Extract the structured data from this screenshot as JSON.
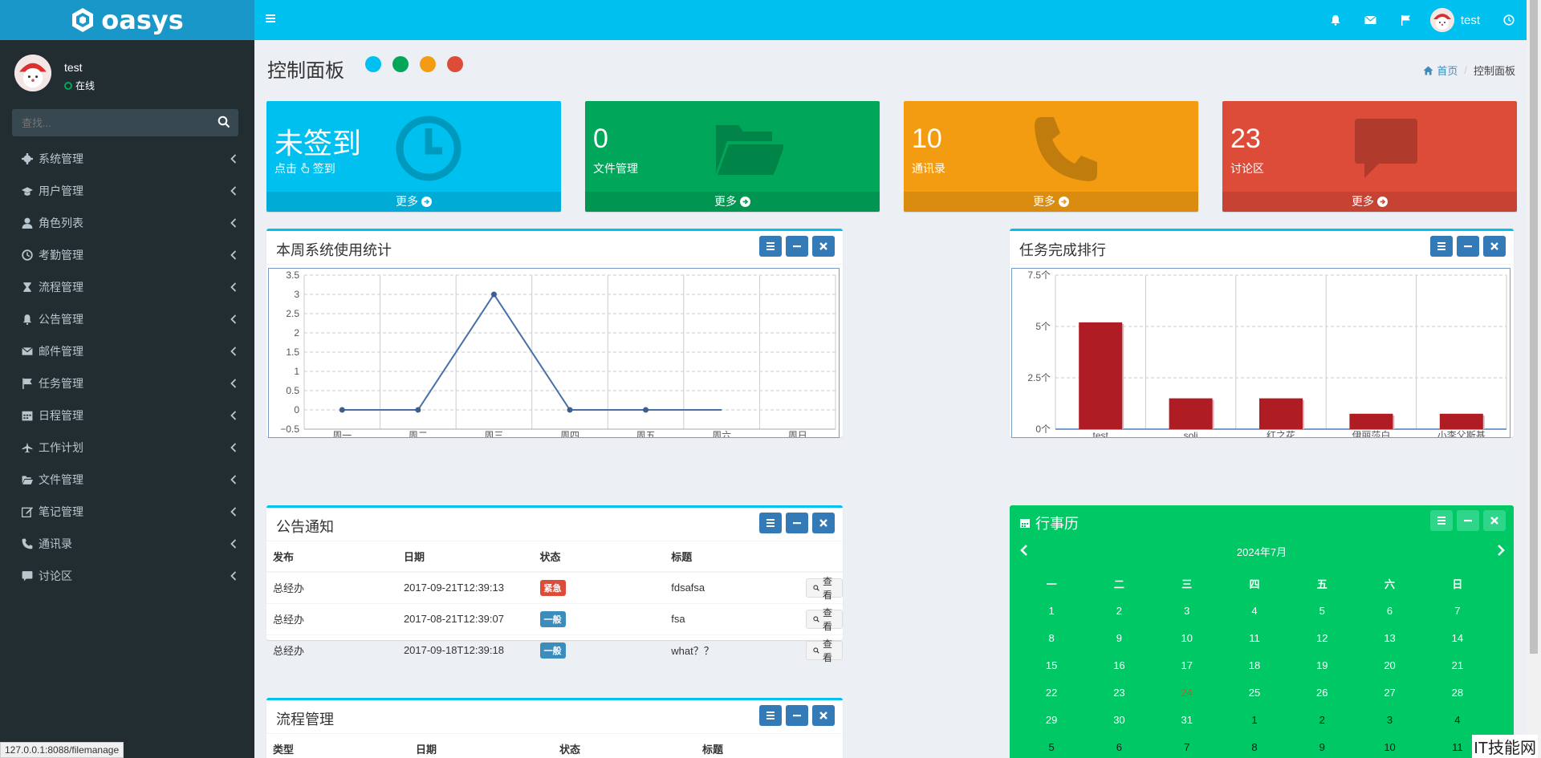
{
  "header": {
    "logo_text": "oasys",
    "user_name": "test"
  },
  "sidebar": {
    "user_name": "test",
    "user_status": "在线",
    "search_placeholder": "查找...",
    "items": [
      {
        "label": "系统管理",
        "icon": "gear-icon"
      },
      {
        "label": "用户管理",
        "icon": "graduation-cap-icon"
      },
      {
        "label": "角色列表",
        "icon": "user-icon"
      },
      {
        "label": "考勤管理",
        "icon": "clock-icon"
      },
      {
        "label": "流程管理",
        "icon": "hourglass-icon"
      },
      {
        "label": "公告管理",
        "icon": "bell-icon"
      },
      {
        "label": "邮件管理",
        "icon": "envelope-icon"
      },
      {
        "label": "任务管理",
        "icon": "flag-icon"
      },
      {
        "label": "日程管理",
        "icon": "calendar-icon"
      },
      {
        "label": "工作计划",
        "icon": "plane-icon"
      },
      {
        "label": "文件管理",
        "icon": "folder-open-icon"
      },
      {
        "label": "笔记管理",
        "icon": "edit-icon"
      },
      {
        "label": "通讯录",
        "icon": "phone-icon"
      },
      {
        "label": "讨论区",
        "icon": "comment-icon"
      }
    ]
  },
  "page": {
    "title": "控制面板",
    "theme_colors": [
      "#00c0ef",
      "#00a65a",
      "#f39c12",
      "#dd4b39"
    ],
    "breadcrumb_home": "首页",
    "breadcrumb_current": "控制面板"
  },
  "small_boxes": [
    {
      "value": "未签到",
      "label_prefix": "点击",
      "label": "签到",
      "footer": "更多",
      "color": "#00c0ef",
      "icon": "clock-icon"
    },
    {
      "value": "0",
      "label": "文件管理",
      "footer": "更多",
      "color": "#00a65a",
      "icon": "folder-open-icon"
    },
    {
      "value": "10",
      "label": "通讯录",
      "footer": "更多",
      "color": "#f39c12",
      "icon": "phone-icon"
    },
    {
      "value": "23",
      "label": "讨论区",
      "footer": "更多",
      "color": "#dd4b39",
      "icon": "comment-icon"
    }
  ],
  "line_box": {
    "title": "本周系统使用统计"
  },
  "bar_box": {
    "title": "任务完成排行"
  },
  "notice_box": {
    "title": "公告通知",
    "columns": [
      "发布",
      "日期",
      "状态",
      "标题",
      ""
    ],
    "rows": [
      {
        "publisher": "总经办",
        "date": "2017-09-21T12:39:13",
        "status": "紧急",
        "status_color": "#dd4b39",
        "title": "fdsafsa",
        "action": "查看"
      },
      {
        "publisher": "总经办",
        "date": "2017-08-21T12:39:07",
        "status": "一般",
        "status_color": "#3c8dbc",
        "title": "fsa",
        "action": "查看"
      },
      {
        "publisher": "总经办",
        "date": "2017-09-18T12:39:18",
        "status": "一般",
        "status_color": "#3c8dbc",
        "title": "what？？",
        "action": "查看"
      }
    ]
  },
  "flow_box": {
    "title": "流程管理",
    "columns": [
      "类型",
      "日期",
      "状态",
      "标题"
    ]
  },
  "calendar": {
    "title": "行事历",
    "month_label": "2024年7月",
    "weekdays": [
      "一",
      "二",
      "三",
      "四",
      "五",
      "六",
      "日"
    ],
    "weeks": [
      [
        "1",
        "2",
        "3",
        "4",
        "5",
        "6",
        "7"
      ],
      [
        "8",
        "9",
        "10",
        "11",
        "12",
        "13",
        "14"
      ],
      [
        "15",
        "16",
        "17",
        "18",
        "19",
        "20",
        "21"
      ],
      [
        "22",
        "23",
        "24",
        "25",
        "26",
        "27",
        "28"
      ],
      [
        "29",
        "30",
        "31",
        "1",
        "2",
        "3",
        "4"
      ],
      [
        "5",
        "6",
        "7",
        "8",
        "9",
        "10",
        "11"
      ]
    ],
    "today": "24"
  },
  "statusbar_url": "127.0.0.1:8088/filemanage",
  "watermark": "IT技能网",
  "chart_data": [
    {
      "type": "line",
      "categories": [
        "周一",
        "周二",
        "周三",
        "周四",
        "周五",
        "周六",
        "周日"
      ],
      "series": [
        {
          "values": [
            0,
            0,
            3,
            0,
            0,
            0,
            null
          ]
        }
      ],
      "ylim": [
        -0.5,
        3.5
      ],
      "yticks": [
        "−0.5",
        "0",
        "0.5",
        "1",
        "1.5",
        "2",
        "2.5",
        "3",
        "3.5"
      ],
      "grid": true
    },
    {
      "type": "bar",
      "categories": [
        "test",
        "soli",
        "红之花",
        "伊丽莎白",
        "小李父斯基"
      ],
      "values": [
        5.2,
        1.5,
        1.5,
        0.75,
        0.75
      ],
      "ylim": [
        0,
        7.5
      ],
      "yticks": [
        "0个",
        "2.5个",
        "5个",
        "7.5个"
      ],
      "bar_color": "#b01c24",
      "grid": true
    }
  ]
}
